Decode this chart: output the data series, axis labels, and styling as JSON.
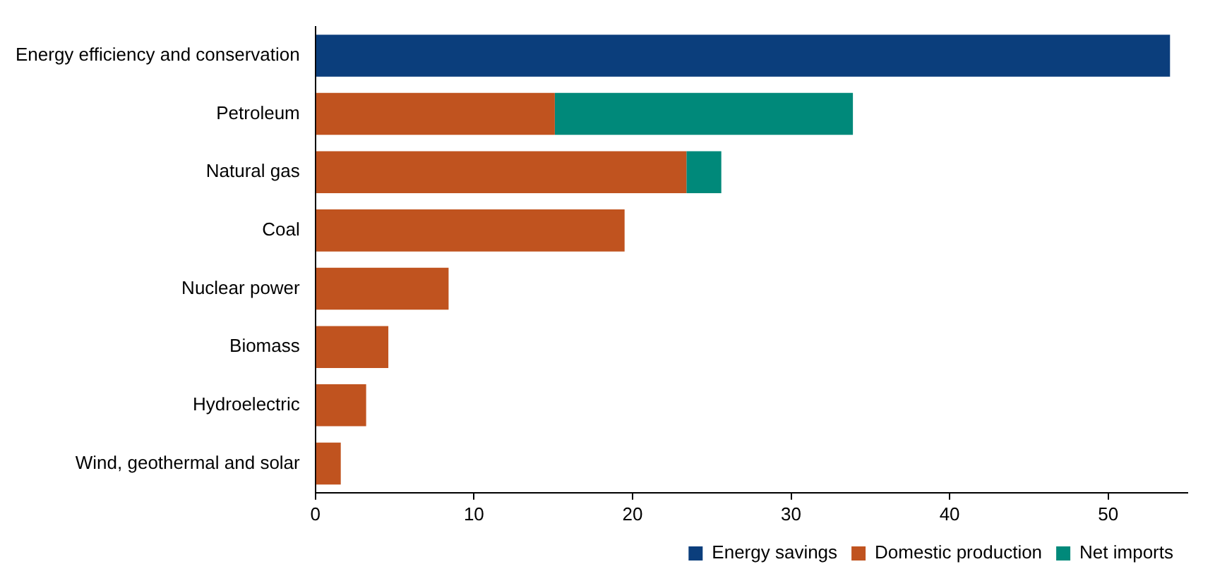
{
  "chart_data": {
    "type": "bar",
    "orientation": "horizontal",
    "stacked": true,
    "categories": [
      "Energy efficiency and conservation",
      "Petroleum",
      "Natural gas",
      "Coal",
      "Nuclear power",
      "Biomass",
      "Hydroelectric",
      "Wind, geothermal and solar"
    ],
    "series": [
      {
        "name": "Energy savings",
        "color": "#0b3e7c",
        "values": [
          53.9,
          null,
          null,
          null,
          null,
          null,
          null,
          null
        ]
      },
      {
        "name": "Domestic production",
        "color": "#c0531f",
        "values": [
          null,
          15.1,
          23.4,
          19.5,
          8.4,
          4.6,
          3.2,
          1.6
        ]
      },
      {
        "name": "Net imports",
        "color": "#00897a",
        "values": [
          null,
          18.8,
          2.2,
          null,
          null,
          null,
          null,
          null
        ]
      }
    ],
    "xlim": [
      0,
      55
    ],
    "xticks": [
      0,
      10,
      20,
      30,
      40,
      50
    ],
    "grid": false,
    "legend": "bottom"
  }
}
